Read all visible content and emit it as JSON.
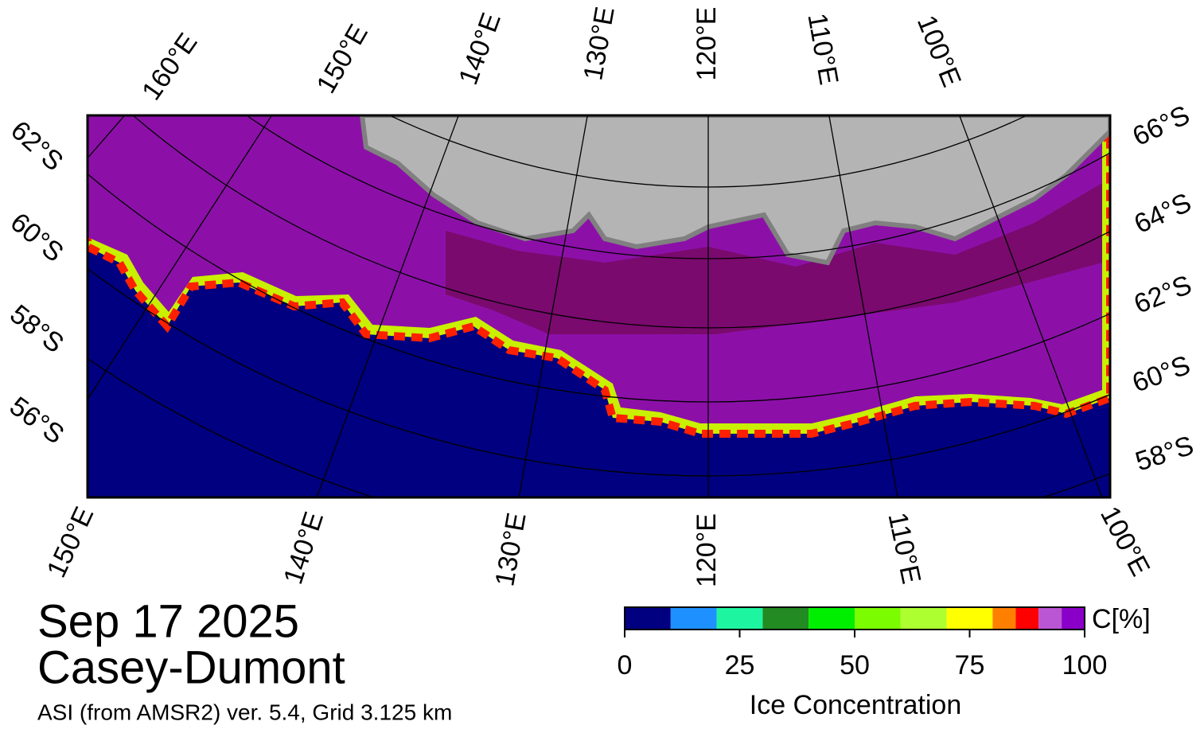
{
  "title": "Sep 17 2025",
  "region": "Casey-Dumont",
  "subtitle": "ASI (from AMSR2) ver. 5.4,  Grid 3.125 km",
  "map": {
    "top_labels": [
      "160°E",
      "150°E",
      "140°E",
      "130°E",
      "120°E",
      "110°E",
      "100°E"
    ],
    "bottom_labels": [
      "150°E",
      "140°E",
      "130°E",
      "120°E",
      "110°E",
      "100°E"
    ],
    "left_labels": [
      "62°S",
      "60°S",
      "58°S",
      "56°S"
    ],
    "right_labels": [
      "66°S",
      "64°S",
      "62°S",
      "60°S",
      "58°S"
    ]
  },
  "colorbar": {
    "label": "Ice Concentration",
    "unit": "C[%]",
    "lim": [
      0,
      100
    ],
    "ticks": [
      0,
      25,
      50,
      75,
      100
    ],
    "bins": [
      0,
      10,
      20,
      30,
      40,
      50,
      60,
      70,
      80,
      85,
      90,
      95,
      100
    ],
    "colors": [
      "#000080",
      "#1e90ff",
      "#1ef5a0",
      "#228b22",
      "#00ee00",
      "#7cfc00",
      "#adff2f",
      "#ffff00",
      "#ff7f00",
      "#ff0000",
      "#ba55d3",
      "#8b00c8"
    ]
  }
}
